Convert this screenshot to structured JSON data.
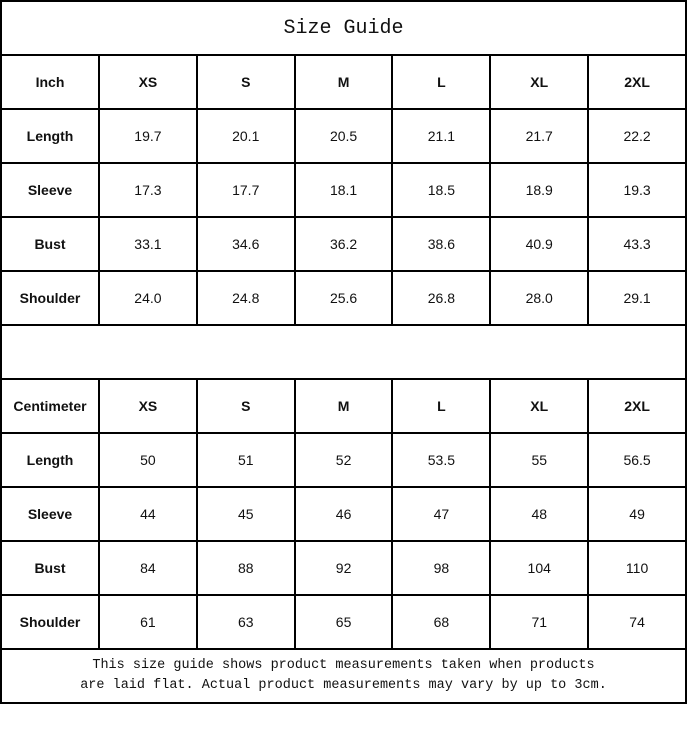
{
  "title": "Size Guide",
  "sizes": [
    "XS",
    "S",
    "M",
    "L",
    "XL",
    "2XL"
  ],
  "inch": {
    "unit_label": "Inch",
    "rows": [
      {
        "label": "Length",
        "values": [
          "19.7",
          "20.1",
          "20.5",
          "21.1",
          "21.7",
          "22.2"
        ]
      },
      {
        "label": "Sleeve",
        "values": [
          "17.3",
          "17.7",
          "18.1",
          "18.5",
          "18.9",
          "19.3"
        ]
      },
      {
        "label": "Bust",
        "values": [
          "33.1",
          "34.6",
          "36.2",
          "38.6",
          "40.9",
          "43.3"
        ]
      },
      {
        "label": "Shoulder",
        "values": [
          "24.0",
          "24.8",
          "25.6",
          "26.8",
          "28.0",
          "29.1"
        ]
      }
    ]
  },
  "centimeter": {
    "unit_label": "Centimeter",
    "rows": [
      {
        "label": "Length",
        "values": [
          "50",
          "51",
          "52",
          "53.5",
          "55",
          "56.5"
        ]
      },
      {
        "label": "Sleeve",
        "values": [
          "44",
          "45",
          "46",
          "47",
          "48",
          "49"
        ]
      },
      {
        "label": "Bust",
        "values": [
          "84",
          "88",
          "92",
          "98",
          "104",
          "110"
        ]
      },
      {
        "label": "Shoulder",
        "values": [
          "61",
          "63",
          "65",
          "68",
          "71",
          "74"
        ]
      }
    ]
  },
  "note_line1": "This size guide shows product measurements taken when products",
  "note_line2": "are laid flat. Actual product measurements may vary by up to 3cm."
}
